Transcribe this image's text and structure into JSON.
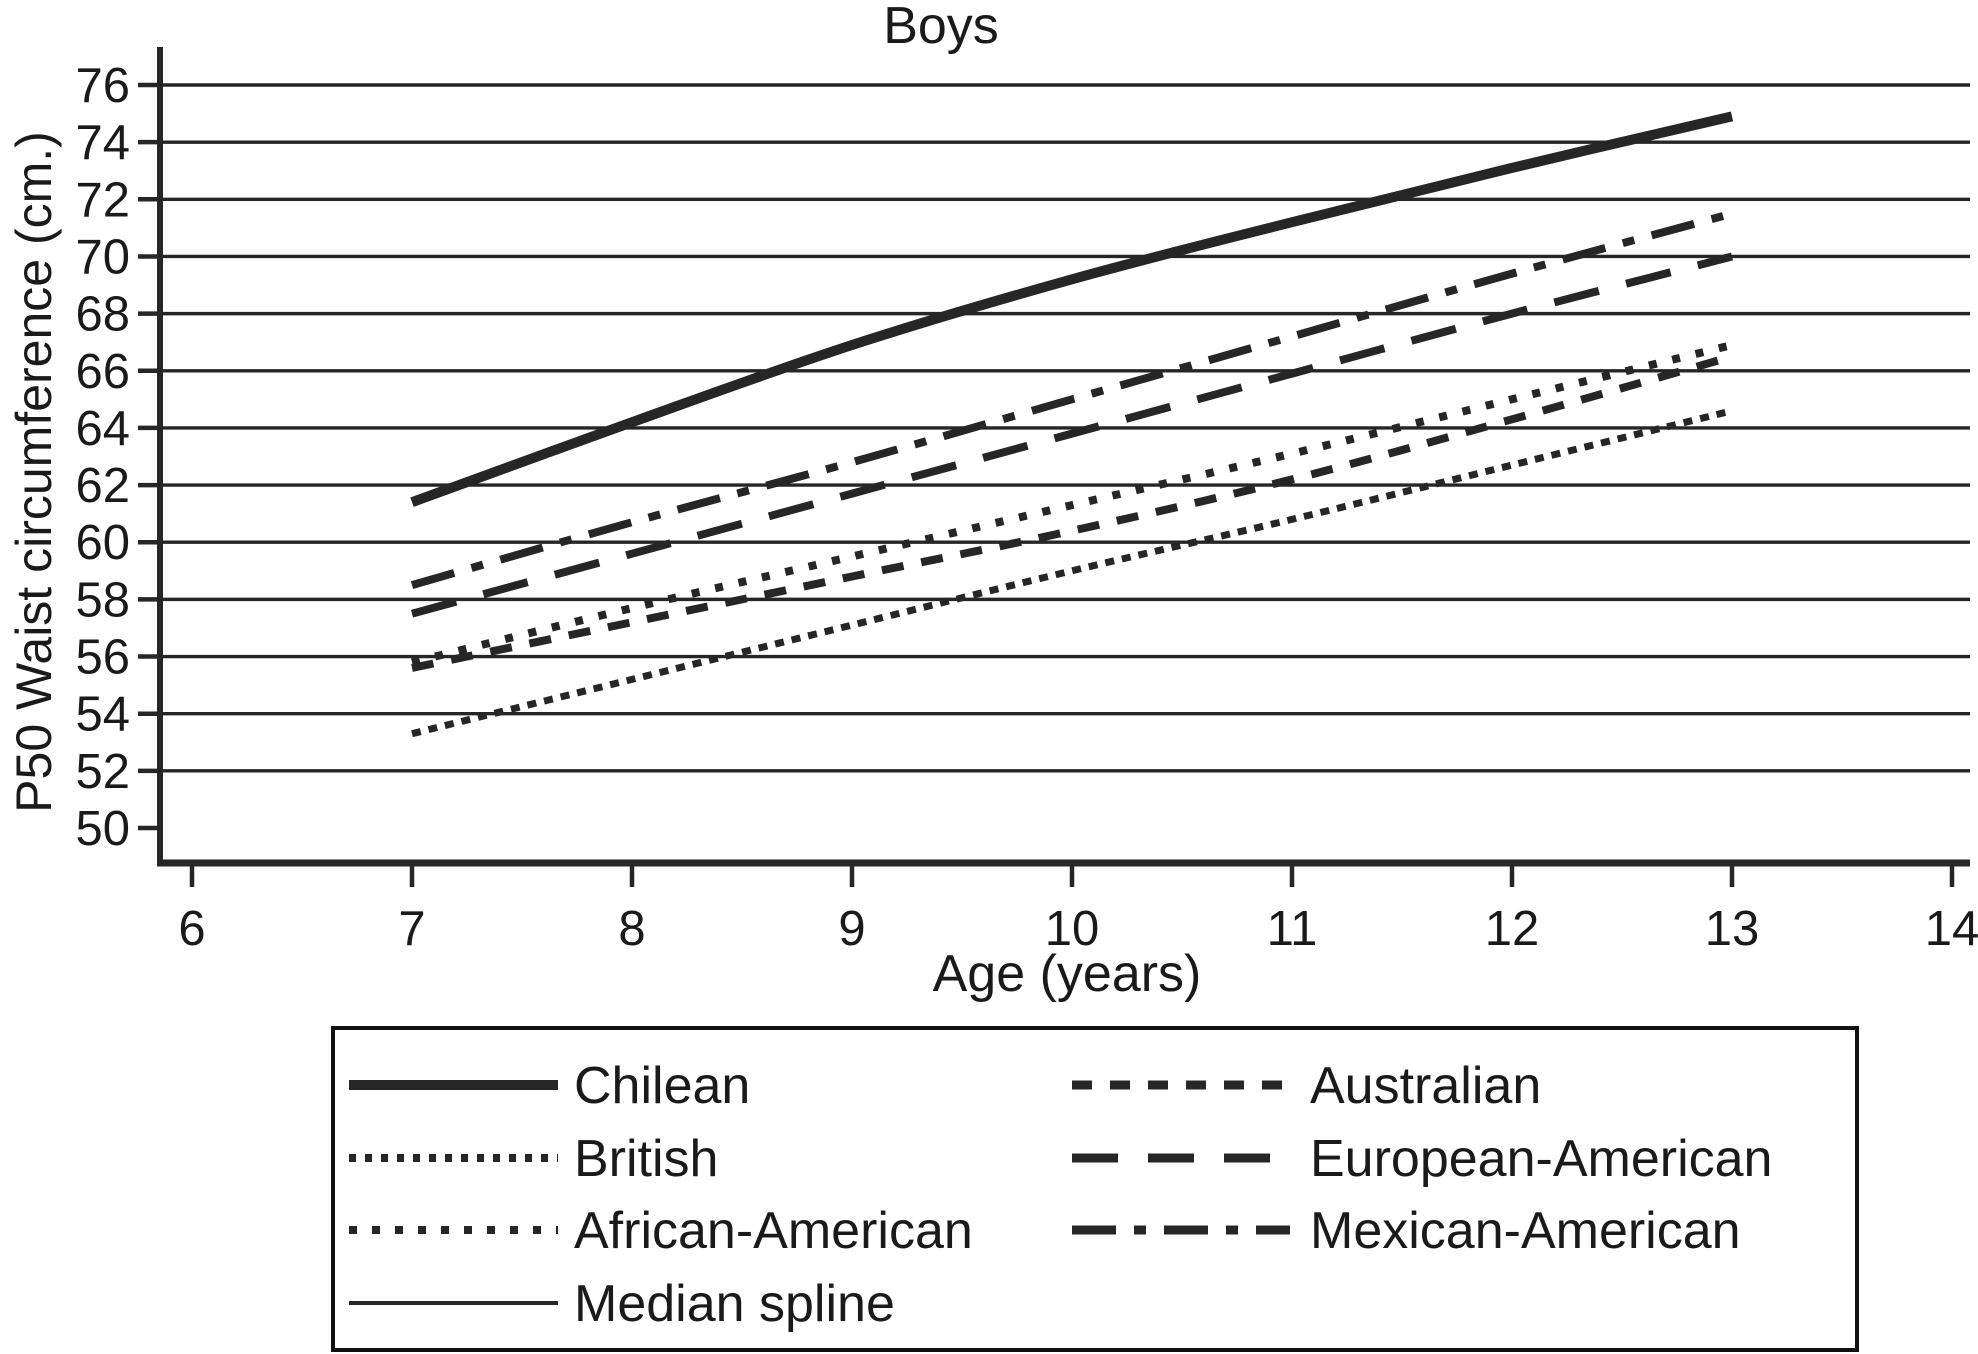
{
  "page": {
    "background": "#ffffff",
    "ink_color": "#262626",
    "text_color": "#1a1a1a"
  },
  "chart_data": {
    "type": "line",
    "title": "Boys",
    "xlabel": "Age (years)",
    "ylabel": "P50 Waist circumference (cm.)",
    "x_ticks": [
      6,
      7,
      8,
      9,
      10,
      11,
      12,
      13,
      14
    ],
    "y_ticks": [
      50,
      52,
      54,
      56,
      58,
      60,
      62,
      64,
      66,
      68,
      70,
      72,
      74,
      76
    ],
    "grid_values": [
      52,
      54,
      56,
      58,
      60,
      62,
      64,
      66,
      68,
      70,
      72,
      74,
      76
    ],
    "xlim": [
      5.85,
      14.1
    ],
    "ylim": [
      48.8,
      77.3
    ],
    "grid": true,
    "legend_position": "bottom",
    "ages": [
      7,
      8,
      9,
      10,
      11,
      12,
      13
    ],
    "line_color": "#262626",
    "series": [
      {
        "name": "British",
        "dash": "9 8",
        "width": 7,
        "values": [
          53.3,
          55.2,
          57.1,
          59.0,
          60.8,
          62.7,
          64.6
        ]
      },
      {
        "name": "African-American",
        "dash": "8 16",
        "width": 8,
        "values": [
          55.8,
          57.7,
          59.5,
          61.3,
          63.1,
          65.0,
          66.9
        ]
      },
      {
        "name": "Australian",
        "dash": "22 18",
        "width": 8,
        "values": [
          55.6,
          57.2,
          58.8,
          60.4,
          62.2,
          64.3,
          66.5
        ]
      },
      {
        "name": "European-American",
        "dash": "46 28",
        "width": 8,
        "values": [
          57.5,
          59.6,
          61.7,
          63.8,
          65.9,
          68.0,
          70.0
        ]
      },
      {
        "name": "Mexican-American",
        "dash": "44 18 12 18",
        "width": 8,
        "values": [
          58.5,
          60.7,
          62.8,
          65.0,
          67.2,
          69.4,
          71.5
        ]
      },
      {
        "name": "Chilean",
        "dash": "solid",
        "width": 10,
        "values": [
          61.4,
          64.2,
          66.9,
          69.2,
          71.2,
          73.1,
          74.9
        ]
      }
    ],
    "legend": {
      "border_color": "#111111",
      "columns": [
        {
          "entries": [
            {
              "label": "Chilean",
              "dash": "solid",
              "width": 10
            },
            {
              "label": "British",
              "dash": "7 9",
              "width": 8
            },
            {
              "label": "African-American",
              "dash": "8 15",
              "width": 8
            },
            {
              "label": "Median spline",
              "dash": "solid",
              "width": 4
            }
          ]
        },
        {
          "entries": [
            {
              "label": "Australian",
              "dash": "20 18",
              "width": 9
            },
            {
              "label": "European-American",
              "dash": "46 30",
              "width": 9
            },
            {
              "label": "Mexican-American",
              "dash": "44 18 12 18",
              "width": 9
            }
          ]
        }
      ]
    }
  }
}
